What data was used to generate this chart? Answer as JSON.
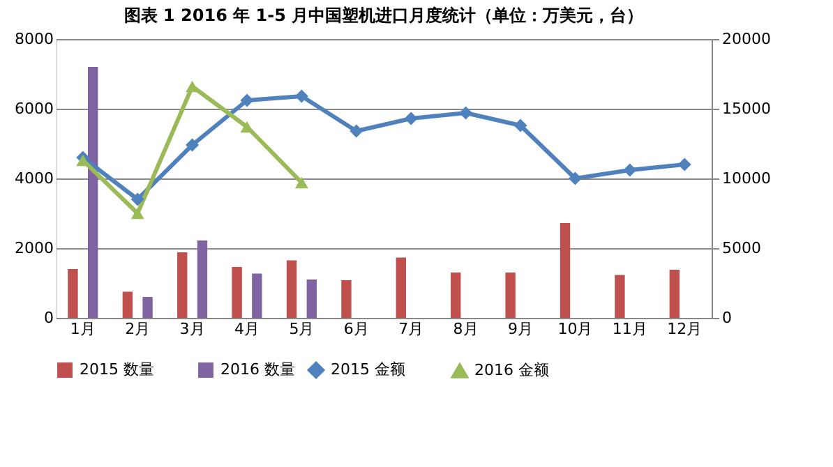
{
  "chart_data": {
    "type": "bar",
    "title": "图表 1   2016 年 1-5 月中国塑机进口月度统计（单位：万美元，台）",
    "categories": [
      "1月",
      "2月",
      "3月",
      "4月",
      "5月",
      "6月",
      "7月",
      "8月",
      "9月",
      "10月",
      "11月",
      "12月"
    ],
    "series": [
      {
        "name": "2015 数量",
        "color": "#c0504d",
        "values": [
          1400,
          750,
          1880,
          1460,
          1650,
          1080,
          1730,
          1300,
          1300,
          2720,
          1230,
          1380
        ]
      },
      {
        "name": "2016 数量",
        "color": "#8064a2",
        "values": [
          7200,
          600,
          2220,
          1270,
          1100,
          null,
          null,
          null,
          null,
          null,
          null,
          null
        ]
      },
      {
        "name": "2015 金额",
        "type": "line",
        "axis": "y2",
        "marker": "diamond",
        "color": "#4f81bd",
        "values": [
          11500,
          8500,
          12400,
          15600,
          15900,
          13400,
          14300,
          14700,
          13800,
          10000,
          10600,
          11000
        ]
      },
      {
        "name": "2016 金额",
        "type": "line",
        "axis": "y2",
        "marker": "triangle",
        "color": "#9bbb59",
        "values": [
          11300,
          7500,
          16600,
          13700,
          9700,
          null,
          null,
          null,
          null,
          null,
          null,
          null
        ]
      }
    ],
    "ylim": [
      0,
      8000
    ],
    "yticks": [
      0,
      2000,
      4000,
      6000,
      8000
    ],
    "y2lim": [
      0,
      20000
    ],
    "y2ticks": [
      0,
      5000,
      10000,
      15000,
      20000
    ],
    "grid": "y",
    "legend": "bottom"
  }
}
